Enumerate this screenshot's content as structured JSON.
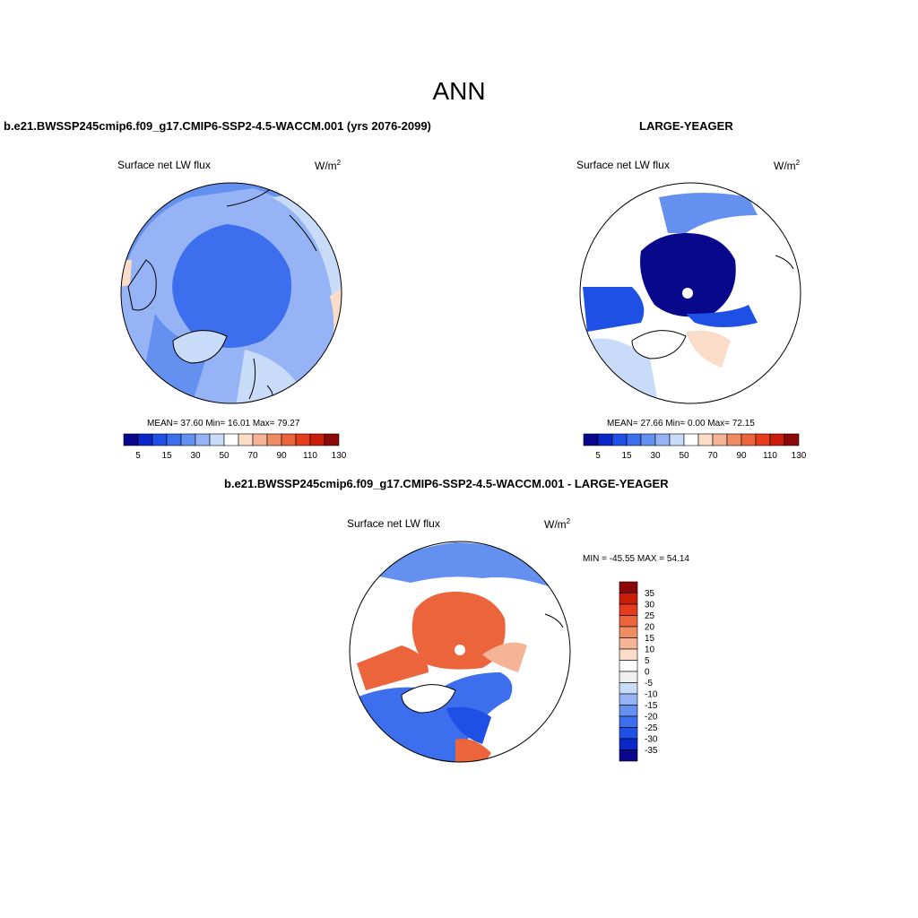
{
  "figure": {
    "title": "ANN"
  },
  "chart_data": [
    {
      "type": "heatmap",
      "projection": "north-polar-stereographic",
      "title": "b.e21.BWSSP245cmip6.f09_g17.CMIP6-SSP2-4.5-WACCM.001 (yrs 2076-2099)",
      "variable": "Surface net LW flux",
      "units": "W/m",
      "units_exp": "2",
      "stats_text": "MEAN=  37.60  Min=  16.01  Max=  79.27",
      "stats": {
        "mean": 37.6,
        "min": 16.01,
        "max": 79.27
      },
      "colorbar": {
        "orientation": "horizontal",
        "levels": [
          5,
          10,
          15,
          20,
          30,
          40,
          50,
          60,
          70,
          80,
          90,
          100,
          110,
          120,
          130
        ],
        "tick_labels": [
          "5",
          "15",
          "30",
          "50",
          "70",
          "90",
          "110",
          "130"
        ],
        "colors": [
          "#08088c",
          "#0a28c8",
          "#1e50e6",
          "#3c6eee",
          "#6490f0",
          "#96b4f5",
          "#c8dcfa",
          "#ffffff",
          "#fadcc8",
          "#f5b496",
          "#f08c64",
          "#eb643c",
          "#e63c1e",
          "#c81e0a",
          "#8c0808"
        ]
      }
    },
    {
      "type": "heatmap",
      "projection": "north-polar-stereographic",
      "title": "LARGE-YEAGER",
      "variable": "Surface net LW flux",
      "units": "W/m",
      "units_exp": "2",
      "stats_text": "MEAN=  27.66  Min=   0.00  Max=  72.15",
      "stats": {
        "mean": 27.66,
        "min": 0.0,
        "max": 72.15
      },
      "colorbar": {
        "orientation": "horizontal",
        "levels": [
          5,
          10,
          15,
          20,
          30,
          40,
          50,
          60,
          70,
          80,
          90,
          100,
          110,
          120,
          130
        ],
        "tick_labels": [
          "5",
          "15",
          "30",
          "50",
          "70",
          "90",
          "110",
          "130"
        ],
        "colors": [
          "#08088c",
          "#0a28c8",
          "#1e50e6",
          "#3c6eee",
          "#6490f0",
          "#96b4f5",
          "#c8dcfa",
          "#ffffff",
          "#fadcc8",
          "#f5b496",
          "#f08c64",
          "#eb643c",
          "#e63c1e",
          "#c81e0a",
          "#8c0808"
        ]
      }
    },
    {
      "type": "heatmap",
      "projection": "north-polar-stereographic",
      "title": "b.e21.BWSSP245cmip6.f09_g17.CMIP6-SSP2-4.5-WACCM.001 - LARGE-YEAGER",
      "variable": "Surface net LW flux",
      "units": "W/m",
      "units_exp": "2",
      "stats_text": "MIN = -45.55 MAX =  54.14",
      "stats": {
        "min": -45.55,
        "max": 54.14
      },
      "colorbar": {
        "orientation": "vertical",
        "tick_labels": [
          "35",
          "30",
          "25",
          "20",
          "15",
          "10",
          "5",
          "0",
          "-5",
          "-10",
          "-15",
          "-20",
          "-25",
          "-30",
          "-35"
        ],
        "colors": [
          "#8c0808",
          "#c81e0a",
          "#e63c1e",
          "#eb643c",
          "#f08c64",
          "#f5b496",
          "#fadcc8",
          "#ffffff",
          "#f0f0f0",
          "#c8dcfa",
          "#96b4f5",
          "#6490f0",
          "#3c6eee",
          "#1e50e6",
          "#0a28c8",
          "#08088c"
        ]
      }
    }
  ]
}
